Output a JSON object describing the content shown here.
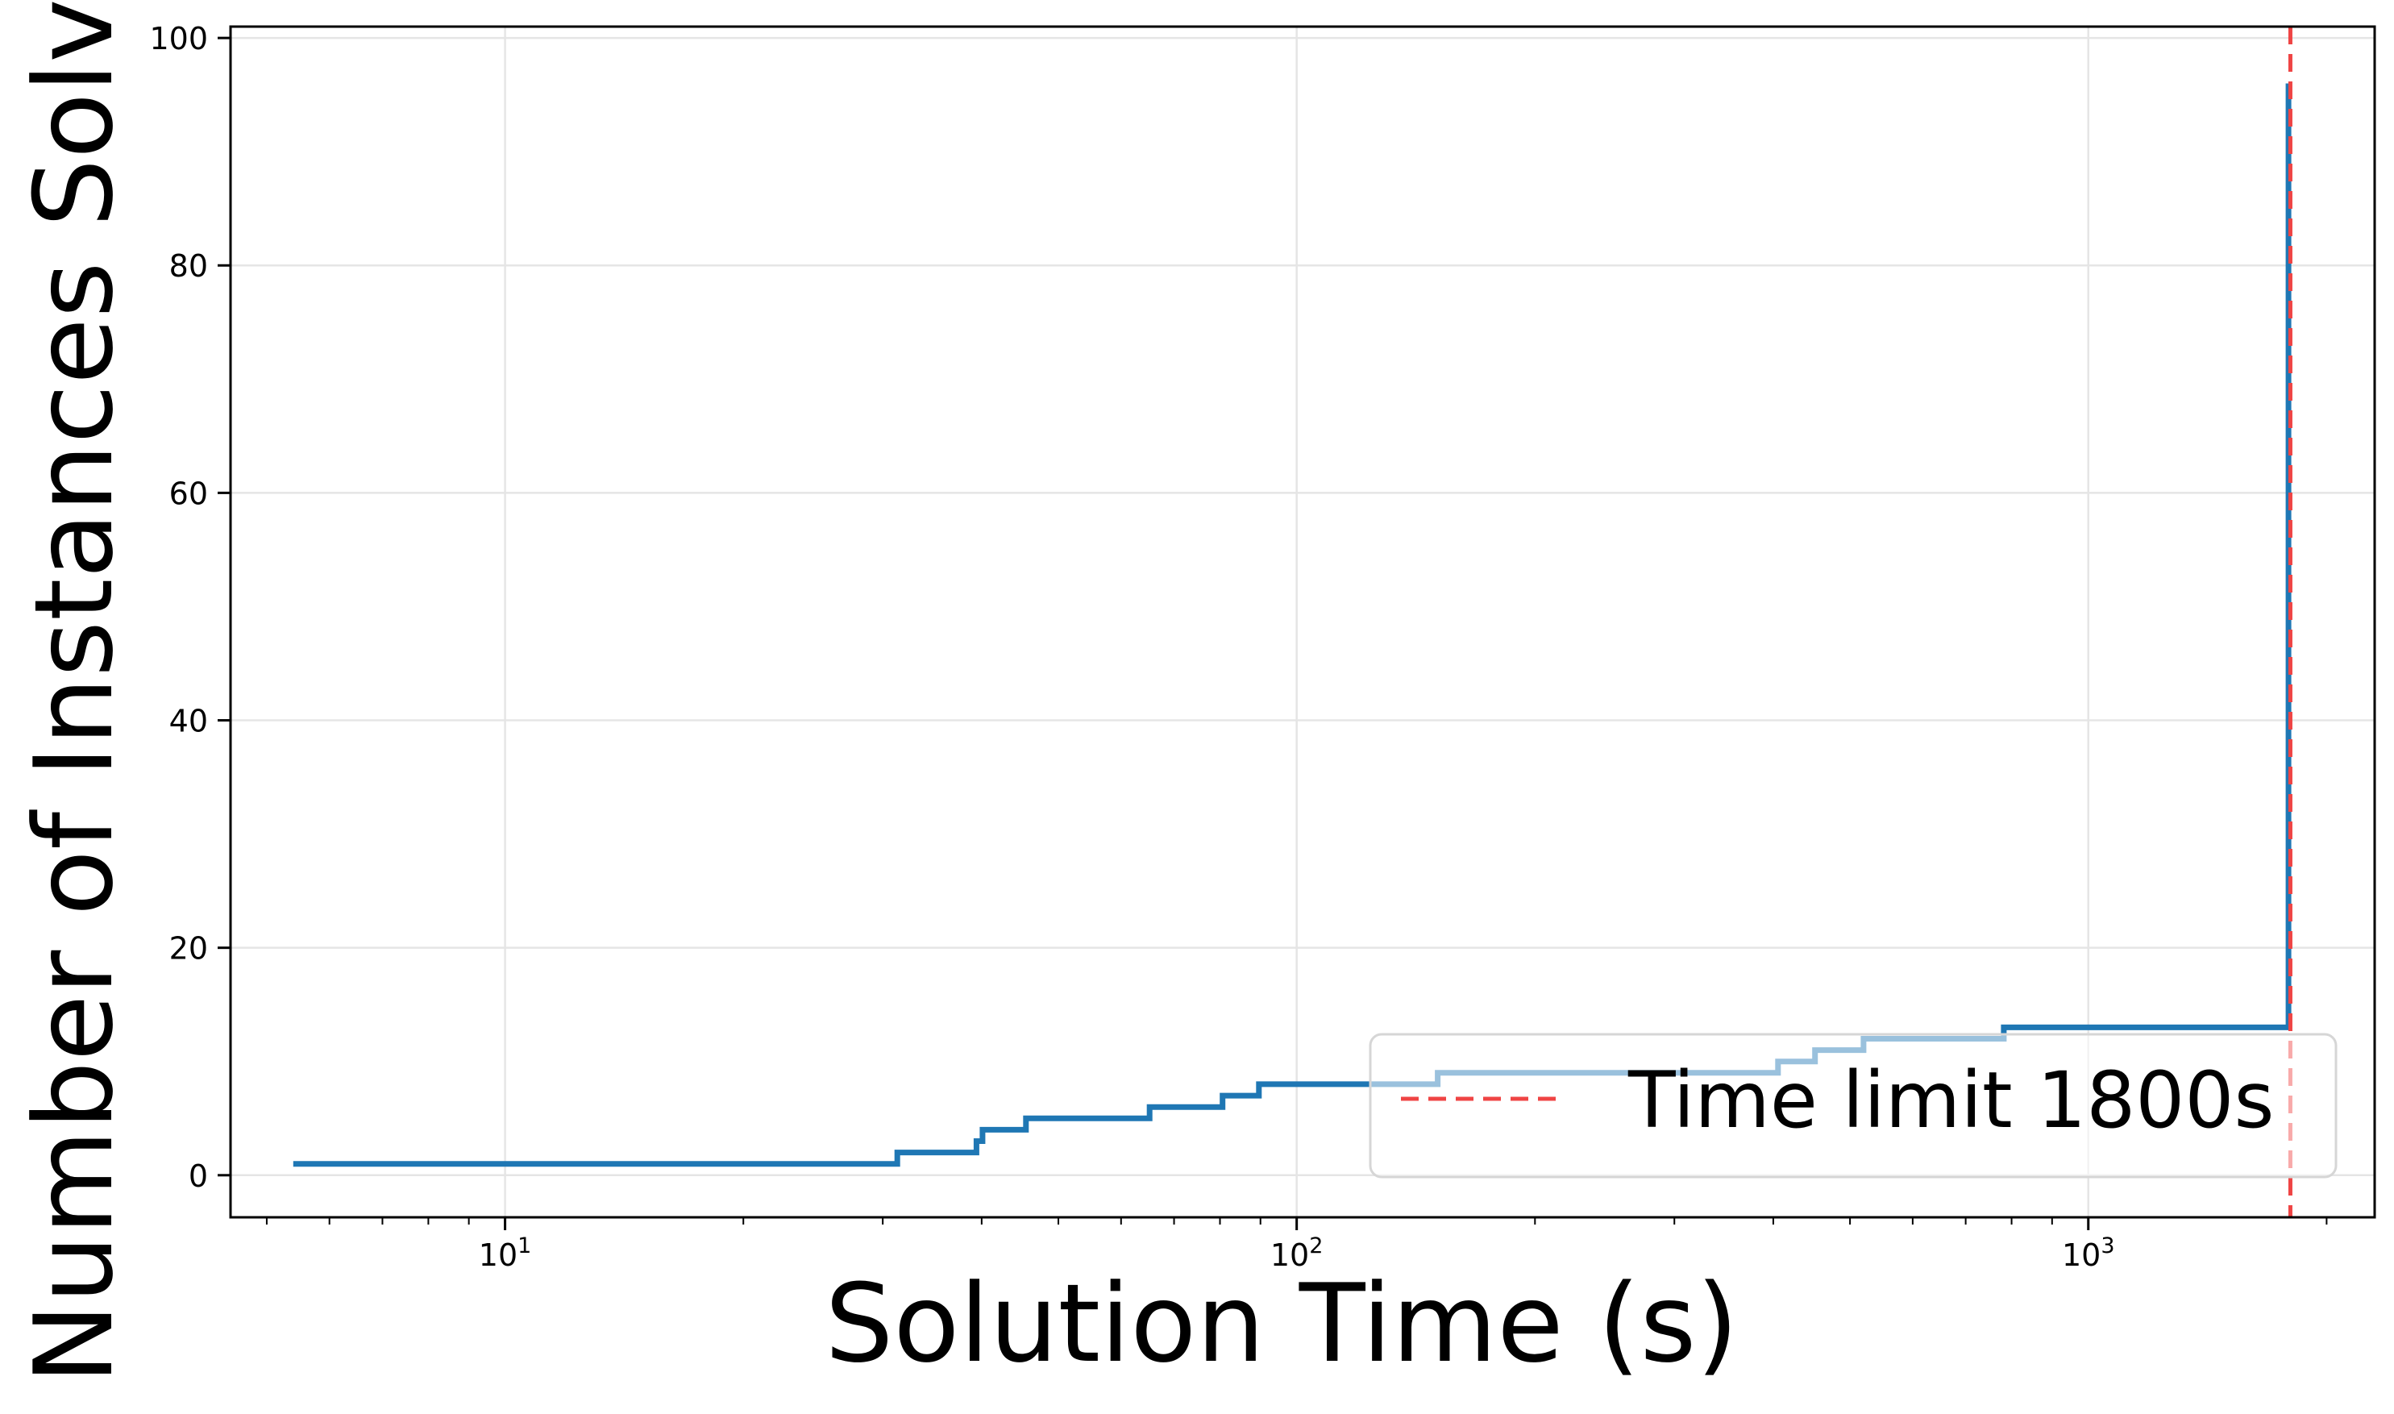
{
  "chart_data": {
    "type": "line",
    "xlabel": "Solution Time (s)",
    "ylabel": "Number of Instances Solv",
    "xscale": "log",
    "xlim": [
      4.5,
      2300
    ],
    "ylim": [
      -3.7,
      101
    ],
    "grid": true,
    "x_ticks": [
      {
        "base": "10",
        "exp": "1",
        "value": 10
      },
      {
        "base": "10",
        "exp": "2",
        "value": 100
      },
      {
        "base": "10",
        "exp": "3",
        "value": 1000
      }
    ],
    "y_ticks": [
      0,
      20,
      40,
      60,
      80,
      100
    ],
    "series": [
      {
        "style": "step",
        "color": "#1f77b4",
        "points": [
          [
            5.4,
            1
          ],
          [
            31.3,
            1
          ],
          [
            31.3,
            2
          ],
          [
            39.4,
            2
          ],
          [
            39.4,
            3
          ],
          [
            40.1,
            3
          ],
          [
            40.1,
            4
          ],
          [
            45.5,
            4
          ],
          [
            45.5,
            5
          ],
          [
            65.2,
            5
          ],
          [
            65.2,
            6
          ],
          [
            80.6,
            6
          ],
          [
            80.6,
            7
          ],
          [
            89.6,
            7
          ],
          [
            89.6,
            8
          ],
          [
            150.7,
            8
          ],
          [
            150.7,
            9
          ],
          [
            405.5,
            9
          ],
          [
            405.5,
            10
          ],
          [
            451.6,
            10
          ],
          [
            451.6,
            11
          ],
          [
            520.1,
            11
          ],
          [
            520.1,
            12
          ],
          [
            782,
            12
          ],
          [
            782,
            13
          ],
          [
            1790,
            13
          ],
          [
            1790,
            96
          ]
        ]
      }
    ],
    "reference_lines": [
      {
        "orientation": "vertical",
        "x": 1800,
        "color": "#ef4444",
        "dash": "dashed",
        "label": "Time limit 1800s"
      }
    ],
    "legend": {
      "placement": "lower right",
      "entries": [
        "Time limit 1800s"
      ]
    }
  }
}
